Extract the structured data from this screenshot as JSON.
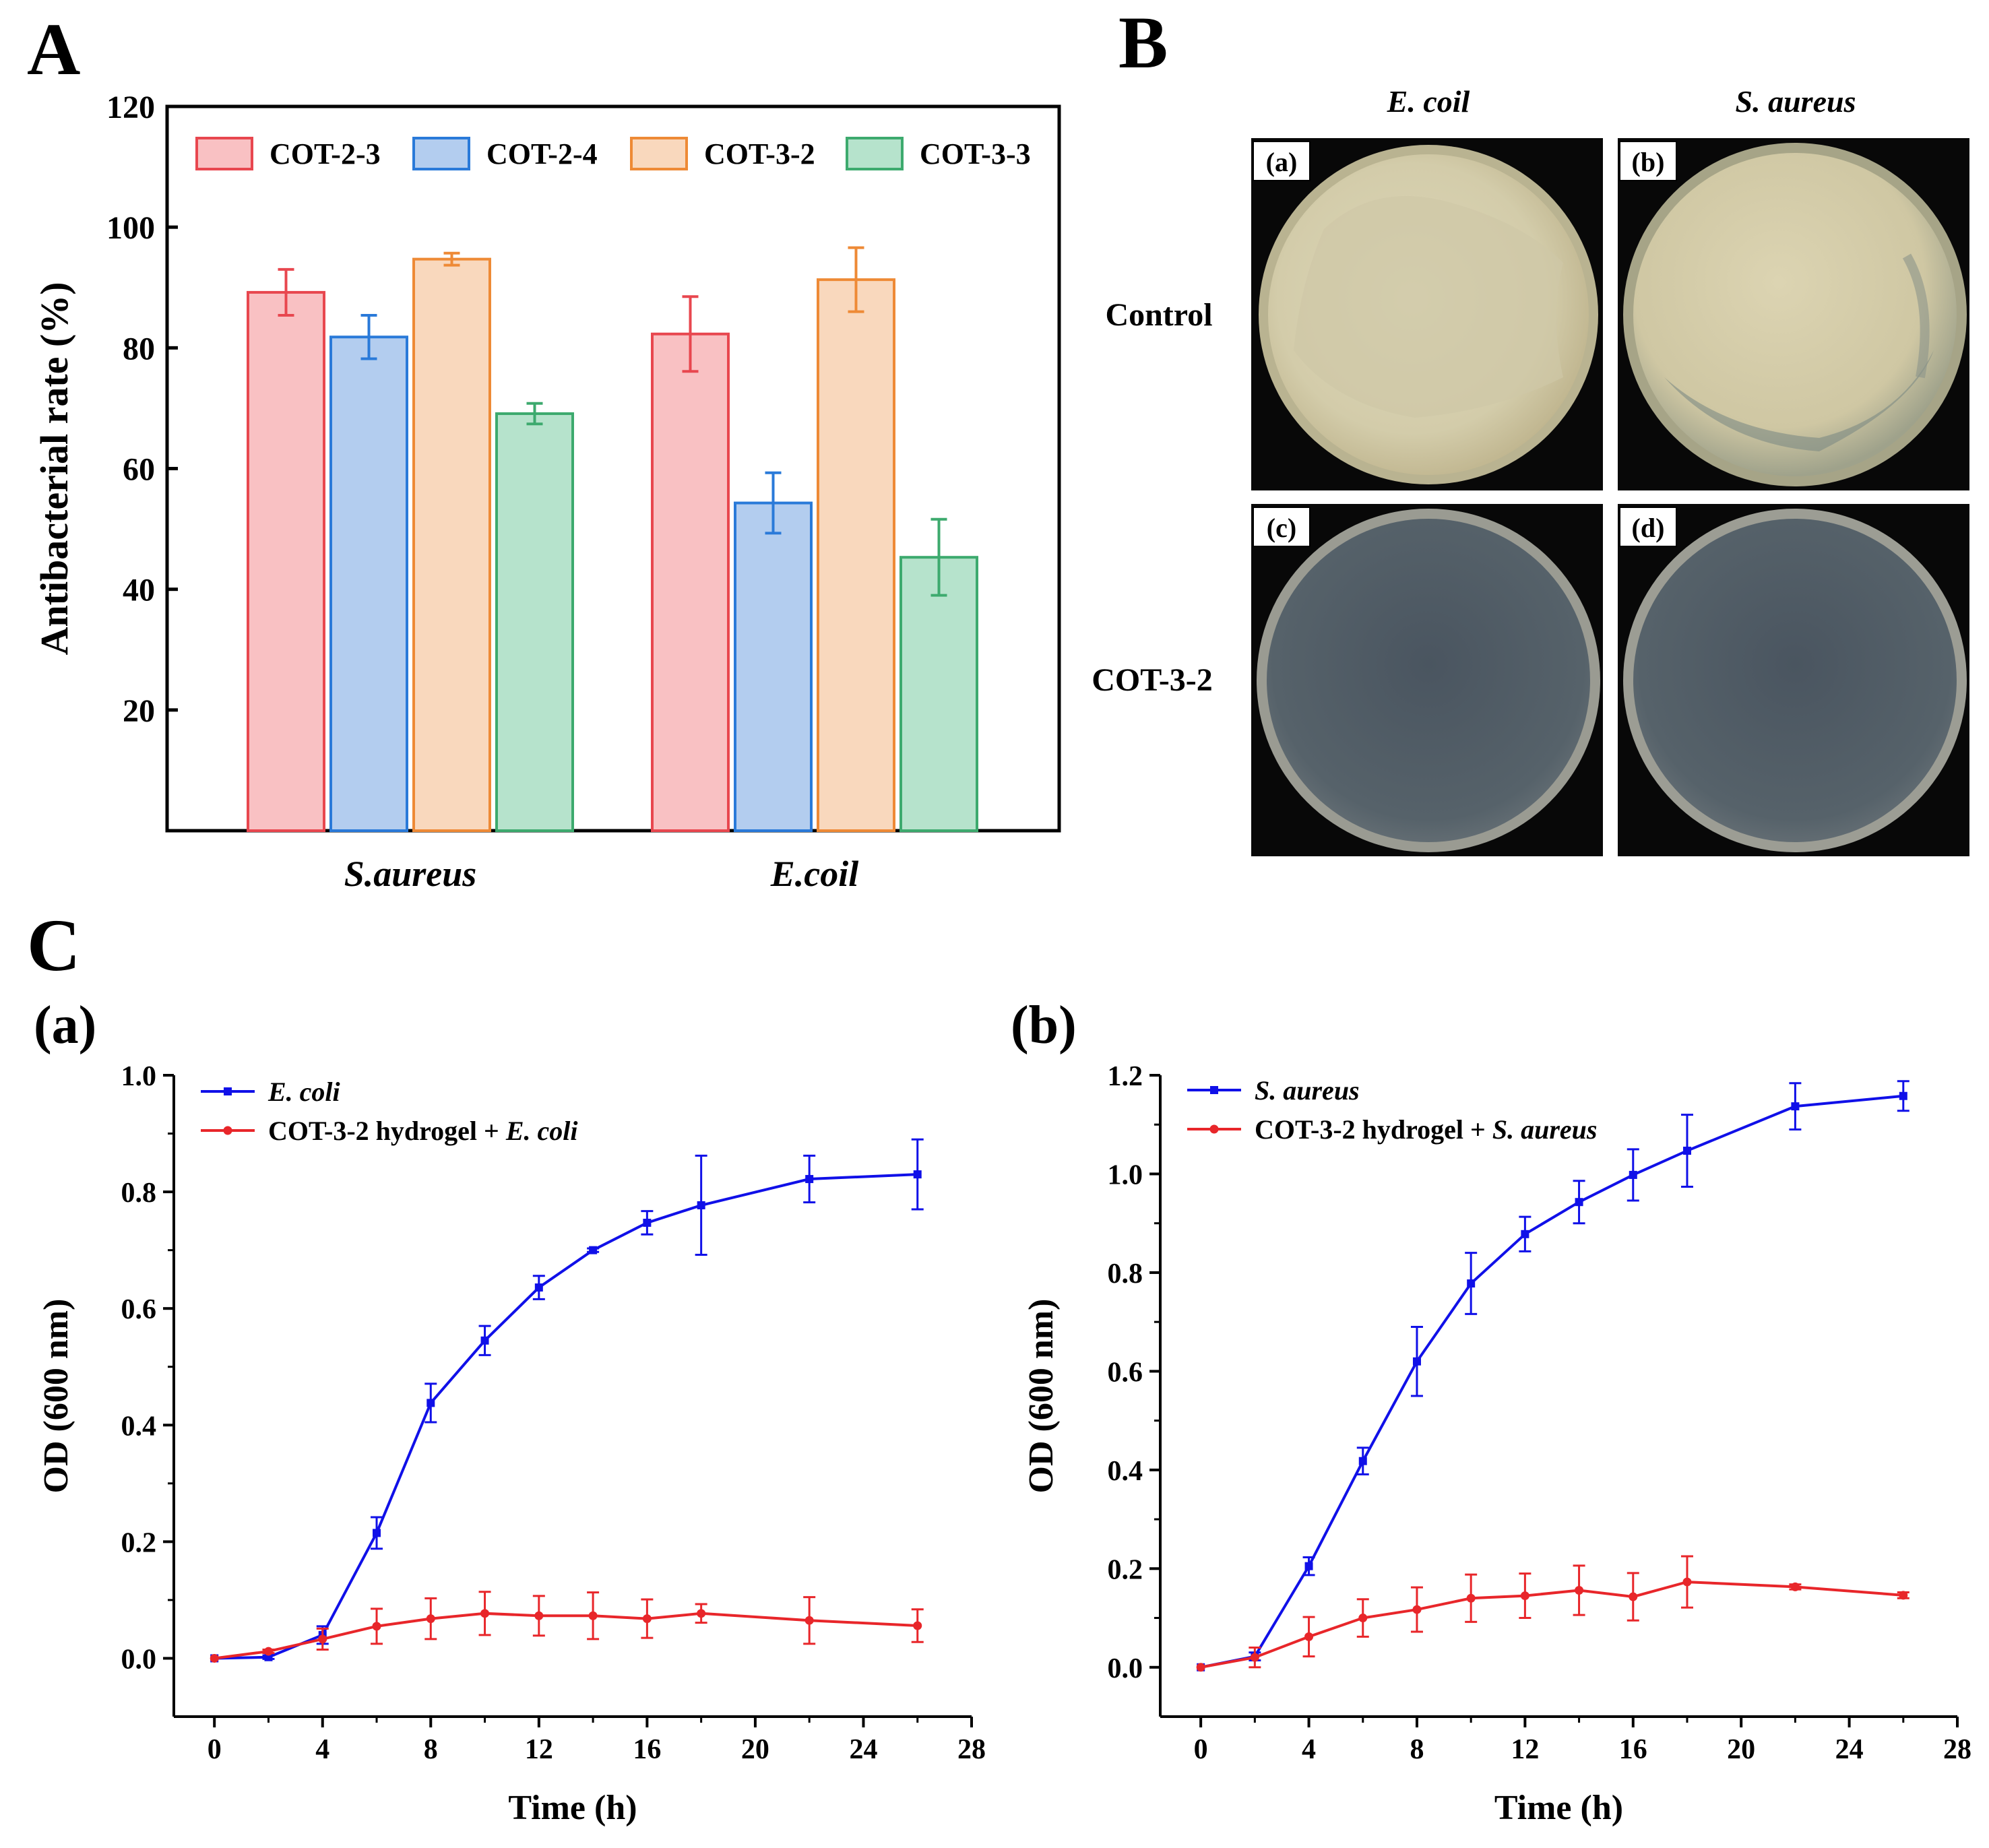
{
  "panels": {
    "A": {
      "letter": "A"
    },
    "B": {
      "letter": "B",
      "col_headers": [
        "E. coil",
        "S. aureus"
      ],
      "row_headers": [
        "Control",
        "COT-3-2"
      ],
      "photo_labels": [
        "(a)",
        "(b)",
        "(c)",
        "(d)"
      ]
    },
    "C": {
      "letter": "C",
      "sub_labels": [
        "(a)",
        "(b)"
      ]
    }
  },
  "colors": {
    "red_fill": "#f9c1c3",
    "red_line": "#e8474f",
    "blue_fill": "#b3cdef",
    "blue_line": "#2a7ad9",
    "orange_fill": "#f9d8bd",
    "orange_line": "#ee8a36",
    "green_fill": "#b6e3cc",
    "green_line": "#3daa6e",
    "line_blue": "#1010e8",
    "line_red": "#e8262a"
  },
  "chart_data": [
    {
      "type": "bar",
      "panel": "A",
      "ylabel": "Antibacterial rate (%)",
      "xlabel": "",
      "ylim": [
        0,
        120
      ],
      "yticks": [
        20,
        40,
        60,
        80,
        100,
        120
      ],
      "categories": [
        "S.aureus",
        "E.coil"
      ],
      "legend_position": "top",
      "series": [
        {
          "name": "COT-2-3",
          "values": [
            89.2,
            82.3
          ],
          "errors": [
            3.8,
            6.2
          ]
        },
        {
          "name": "COT-2-4",
          "values": [
            81.8,
            54.3
          ],
          "errors": [
            3.6,
            5.0
          ]
        },
        {
          "name": "COT-3-2",
          "values": [
            94.7,
            91.3
          ],
          "errors": [
            1.0,
            5.3
          ]
        },
        {
          "name": "COT-3-3",
          "values": [
            69.1,
            45.3
          ],
          "errors": [
            1.7,
            6.3
          ]
        }
      ]
    },
    {
      "type": "line",
      "panel": "C(a)",
      "xlabel": "Time (h)",
      "ylabel": "OD (600 nm)",
      "xlim": [
        -1.5,
        28
      ],
      "ylim": [
        -0.1,
        1.0
      ],
      "xticks": [
        "0",
        "4",
        "8",
        "12",
        "16",
        "20",
        "24",
        "28"
      ],
      "yticks": [
        "0.0",
        "0.2",
        "0.4",
        "0.6",
        "0.8",
        "1.0"
      ],
      "legend_position": "top-left",
      "series": [
        {
          "name_prefix": "",
          "name_italic": "E. coli",
          "x": [
            0,
            2,
            4,
            6,
            8,
            10,
            12,
            14,
            16,
            18,
            22,
            26
          ],
          "y": [
            0.0,
            0.002,
            0.04,
            0.215,
            0.438,
            0.545,
            0.636,
            0.7,
            0.747,
            0.777,
            0.822,
            0.83
          ],
          "err": [
            0.0,
            0.003,
            0.015,
            0.027,
            0.033,
            0.025,
            0.02,
            0.003,
            0.02,
            0.085,
            0.04,
            0.06
          ]
        },
        {
          "name_prefix": "COT-3-2 hydrogel + ",
          "name_italic": "E. coli",
          "x": [
            0,
            2,
            4,
            6,
            8,
            10,
            12,
            14,
            16,
            18,
            22,
            26
          ],
          "y": [
            0.0,
            0.012,
            0.033,
            0.055,
            0.068,
            0.077,
            0.073,
            0.073,
            0.068,
            0.077,
            0.065,
            0.056
          ],
          "err": [
            0.0,
            0.003,
            0.018,
            0.03,
            0.035,
            0.037,
            0.034,
            0.04,
            0.033,
            0.016,
            0.04,
            0.028
          ]
        }
      ]
    },
    {
      "type": "line",
      "panel": "C(b)",
      "xlabel": "Time (h)",
      "ylabel": "OD (600 nm)",
      "xlim": [
        -1.5,
        28
      ],
      "ylim": [
        -0.1,
        1.2
      ],
      "xticks": [
        "0",
        "4",
        "8",
        "12",
        "16",
        "20",
        "24",
        "28"
      ],
      "yticks": [
        "0.0",
        "0.2",
        "0.4",
        "0.6",
        "0.8",
        "1.0",
        "1.2"
      ],
      "legend_position": "top-left",
      "series": [
        {
          "name_prefix": "",
          "name_italic": "S. aureus",
          "x": [
            0,
            2,
            4,
            6,
            8,
            10,
            12,
            14,
            16,
            18,
            22,
            26
          ],
          "y": [
            0.0,
            0.022,
            0.205,
            0.418,
            0.62,
            0.778,
            0.878,
            0.943,
            0.998,
            1.047,
            1.137,
            1.158
          ],
          "err": [
            0.0,
            0.008,
            0.018,
            0.027,
            0.07,
            0.062,
            0.035,
            0.043,
            0.052,
            0.073,
            0.047,
            0.03
          ]
        },
        {
          "name_prefix": "COT-3-2 hydrogel + ",
          "name_italic": "S. aureus",
          "x": [
            0,
            2,
            4,
            6,
            8,
            10,
            12,
            14,
            16,
            18,
            22,
            26
          ],
          "y": [
            0.0,
            0.02,
            0.062,
            0.1,
            0.117,
            0.14,
            0.145,
            0.156,
            0.143,
            0.173,
            0.163,
            0.146
          ],
          "err": [
            0.0,
            0.02,
            0.04,
            0.038,
            0.045,
            0.048,
            0.045,
            0.05,
            0.048,
            0.052,
            0.005,
            0.006
          ]
        }
      ]
    }
  ]
}
